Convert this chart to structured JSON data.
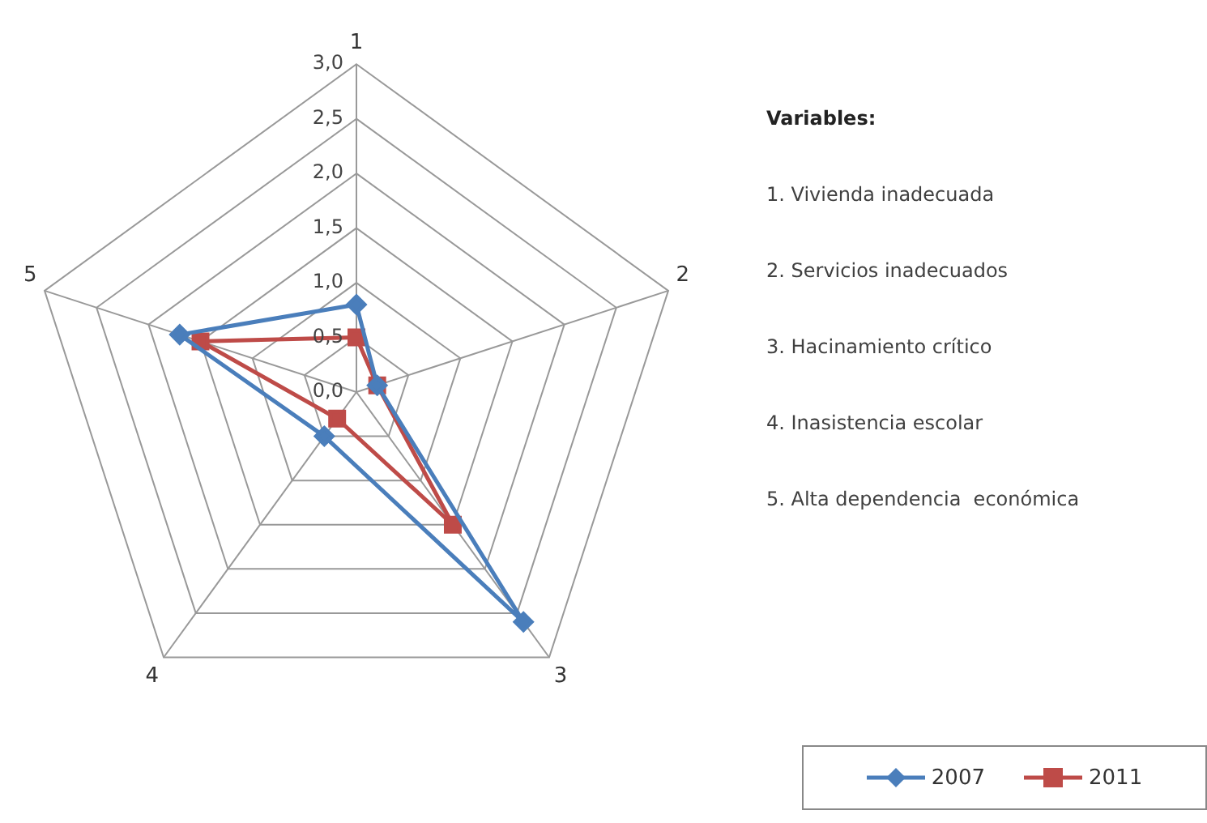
{
  "chart_data": {
    "type": "radar",
    "categories": [
      "1",
      "2",
      "3",
      "4",
      "5"
    ],
    "series": [
      {
        "name": "2007",
        "color": "#4a7ebb",
        "marker": "diamond",
        "values": [
          0.8,
          0.2,
          2.6,
          0.5,
          1.7
        ]
      },
      {
        "name": "2011",
        "color": "#be4b48",
        "marker": "square",
        "values": [
          0.5,
          0.2,
          1.5,
          0.3,
          1.5
        ]
      }
    ],
    "ylim": [
      0,
      3
    ],
    "yticks": [
      {
        "value": 0,
        "label": "0,0"
      },
      {
        "value": 0.5,
        "label": "0,5"
      },
      {
        "value": 1,
        "label": "1,0"
      },
      {
        "value": 1.5,
        "label": "1,5"
      },
      {
        "value": 2,
        "label": "2,0"
      },
      {
        "value": 2.5,
        "label": "2,5"
      },
      {
        "value": 3,
        "label": "3,0"
      }
    ],
    "grid": true,
    "legend": "bottom right",
    "annotations": [
      "Variables:",
      "1. Vivienda inadecuada",
      "2. Servicios inadecuados",
      "3. Hacinamiento crítico",
      "4. Inasistencia escolar",
      "5. Alta dependencia  económica"
    ]
  }
}
